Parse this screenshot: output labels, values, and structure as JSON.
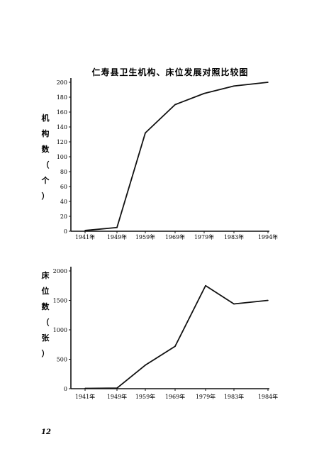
{
  "page_number": "12",
  "chart_data": [
    {
      "type": "line",
      "title": "仁寿县卫生机构、床位发展对照比较图",
      "ylabel": "机构数（个）",
      "xlabel": "",
      "categories": [
        "1941年",
        "1949年",
        "1959年",
        "1969年",
        "1979年",
        "1983年",
        "1994年"
      ],
      "x_ticks": [
        "1941年",
        "1949年",
        "1959年",
        "1969年",
        "1979年",
        "1983年",
        "1994年"
      ],
      "values": [
        1,
        5,
        132,
        170,
        185,
        195,
        200
      ],
      "y_ticks": [
        "0",
        "20",
        "40",
        "60",
        "80",
        "100",
        "120",
        "140",
        "160",
        "180",
        "200"
      ],
      "ylim": [
        0,
        200
      ],
      "grid": false
    },
    {
      "type": "line",
      "title": "",
      "ylabel": "床位数（张）",
      "xlabel": "",
      "categories": [
        "1941年",
        "1949年",
        "1959年",
        "1969年",
        "1979年",
        "1983年",
        "1984年"
      ],
      "x_ticks": [
        "1941年",
        "1949年",
        "1959年",
        "1969年",
        "1979年",
        "1983年",
        "1984年"
      ],
      "values": [
        5,
        10,
        400,
        720,
        1750,
        1440,
        1500
      ],
      "y_ticks": [
        "0",
        "500",
        "1000",
        "1500",
        "2000"
      ],
      "ylim": [
        0,
        2000
      ],
      "grid": false
    }
  ]
}
